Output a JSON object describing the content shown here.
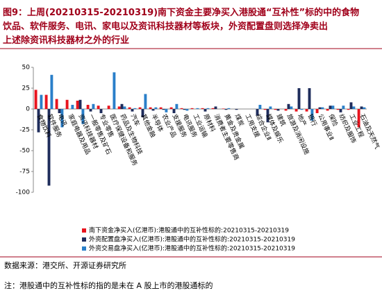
{
  "chart_data": {
    "type": "bar",
    "title_lines": [
      "图9：上周(20210315-20210319)南下资金主要净买入港股通“互补性”标的中的食物",
      "饮品、软件服务、电讯、家电以及资讯科技器材等板块，外资配置盘则选择净卖出",
      "上述除资讯科技器材之外的行业"
    ],
    "categories": [
      "食物饮料",
      "软件服务",
      "电讯",
      "家庭电器及用品",
      "资讯科技器材",
      "一般零售及矿石",
      "专业零售",
      "医疗保健设备和服务",
      "药品及生物科技",
      "汽车",
      "其他金融",
      "半导体",
      "农业产品",
      "支援服务",
      "电讯服务",
      "工业运输",
      "原材料",
      "消费者主要零售商",
      "黄金及贵金属",
      "煤炭",
      "工用支援",
      "综合企业Ⅱ",
      "媒体及娱乐",
      "建筑",
      "旅游及消闲设施",
      "地产",
      "银行",
      "公用事业Ⅱ",
      "保险",
      "纺织及服饰",
      "工业工程",
      "石油及天然气"
    ],
    "series": [
      {
        "name": "南下资金净买入(亿港币):港股通中的互补性标的:20210315-20210319",
        "color": "#e8141e",
        "values": [
          23,
          17,
          12,
          11,
          10,
          5,
          4,
          4,
          3,
          2,
          2,
          2,
          2,
          2,
          1,
          1,
          1,
          1,
          0.5,
          0,
          0,
          0,
          -1,
          -1,
          -2,
          -3,
          -3,
          -5,
          -2,
          -1,
          -1,
          -22
        ]
      },
      {
        "name": "外资配置盘净买入(亿港币):港股通中的互补性标的:20210315-20210319",
        "color": "#1f2d5c",
        "values": [
          -28,
          -92,
          -5,
          0,
          11,
          -3,
          -5,
          0,
          6,
          -3,
          -10,
          -2,
          -1,
          -5,
          -1,
          0,
          -3,
          3,
          -1,
          -1,
          0,
          -8,
          -16,
          -2,
          6,
          25,
          25,
          2,
          4,
          -4,
          8,
          3
        ]
      },
      {
        "name": "外资交易盘净买入(亿港币):港股通中的互补性标的:20210315-20210319",
        "color": "#2a7fc9",
        "values": [
          17,
          41,
          -22,
          5,
          -18,
          6,
          0,
          44,
          3,
          1,
          18,
          2,
          -4,
          6,
          -2,
          1,
          1,
          0,
          1,
          0,
          0,
          5,
          3,
          0,
          3,
          -1,
          -14,
          2,
          4,
          4,
          3,
          2
        ]
      }
    ],
    "ylim": [
      -100,
      50
    ],
    "yticks": [
      -100,
      -75,
      -50,
      -25,
      0,
      25,
      50
    ],
    "source": "数据来源：港交所、开源证券研究所",
    "note": "注：港股通中的互补性标的指的是未在 A 股上市的港股通标的"
  }
}
